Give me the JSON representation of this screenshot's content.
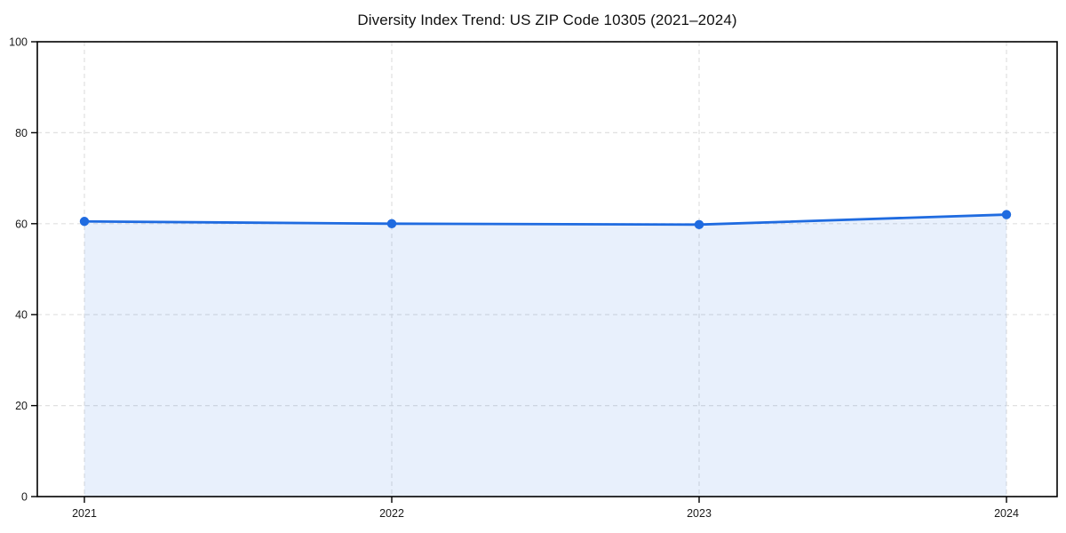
{
  "title": "Diversity Index Trend: US ZIP Code 10305 (2021–2024)",
  "chart_data": {
    "type": "area",
    "title": "Diversity Index Trend: US ZIP Code 10305 (2021–2024)",
    "x": [
      "2021",
      "2022",
      "2023",
      "2024"
    ],
    "series": [
      {
        "name": "Diversity Index",
        "values": [
          60.5,
          60.0,
          59.8,
          62.0
        ]
      }
    ],
    "xlabel": "",
    "ylabel": "",
    "ylim": [
      0,
      100
    ],
    "yticks": [
      0,
      20,
      40,
      60,
      80,
      100
    ],
    "grid": "dashed, horizontal and vertical",
    "legend": "none",
    "marker": "circle",
    "colors": {
      "line": "#1f6be0",
      "fill": "rgba(31,107,224,0.10)",
      "gridline": "#e0e0e0",
      "spine": "#000000",
      "tick_label": "#1a1a1a",
      "background": "#ffffff"
    }
  }
}
